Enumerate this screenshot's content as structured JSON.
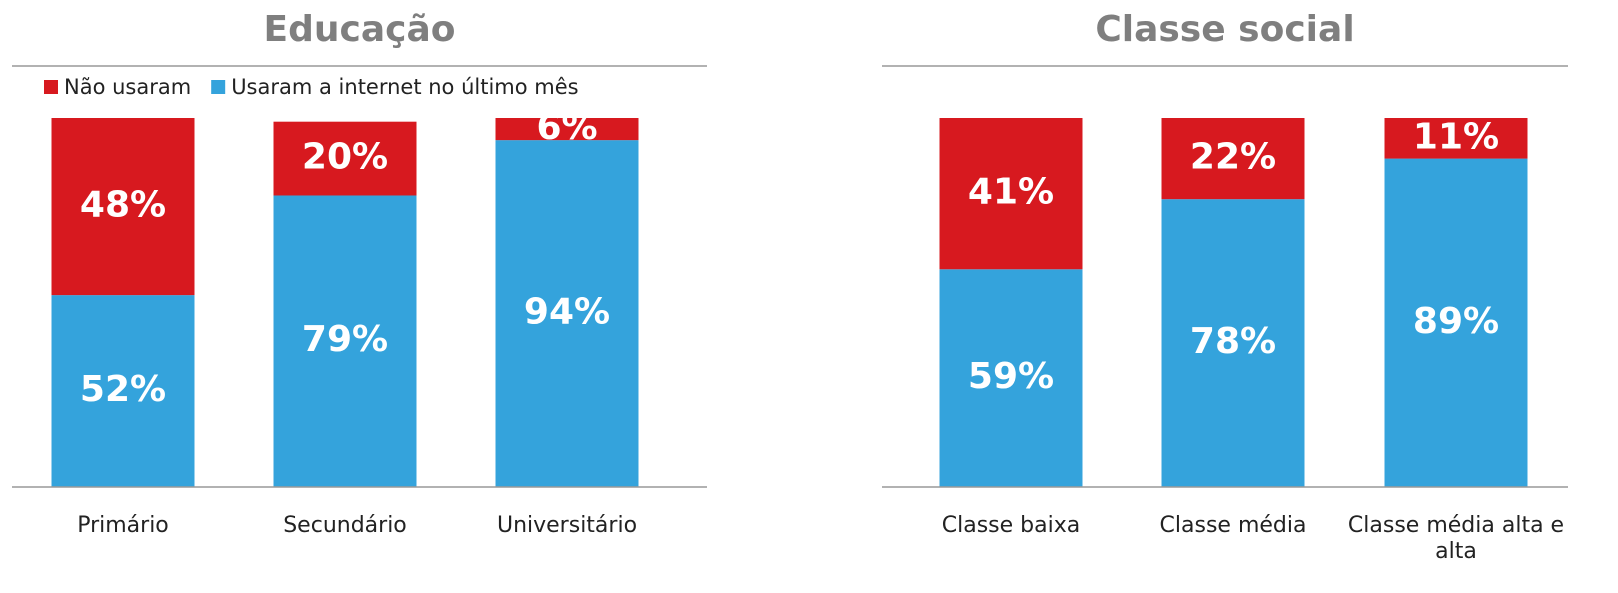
{
  "chart_data": [
    {
      "type": "stacked_bar",
      "title": "Educação",
      "categories": [
        "Primário",
        "Secundário",
        "Universitário"
      ],
      "series": [
        {
          "name": "Usaram a internet no último mês",
          "color": "#34a3dc",
          "values": [
            52,
            79,
            94
          ],
          "value_labels": [
            "52%",
            "79%",
            "94%"
          ]
        },
        {
          "name": "Não usaram",
          "color": "#d7191f",
          "values": [
            48,
            20,
            6
          ],
          "value_labels": [
            "48%",
            "20%",
            "6%"
          ]
        }
      ],
      "ylim": [
        0,
        100
      ],
      "legend": "top-left"
    },
    {
      "type": "stacked_bar",
      "title": "Classe social",
      "categories": [
        "Classe baixa",
        "Classe média",
        "Classe média alta e alta"
      ],
      "series": [
        {
          "color": "#34a3dc",
          "values": [
            59,
            78,
            89
          ],
          "value_labels": [
            "59%",
            "78%",
            "89%"
          ]
        },
        {
          "color": "#d7191f",
          "values": [
            41,
            22,
            11
          ],
          "value_labels": [
            "41%",
            "22%",
            "11%"
          ]
        }
      ],
      "ylim": [
        0,
        100
      ]
    }
  ]
}
